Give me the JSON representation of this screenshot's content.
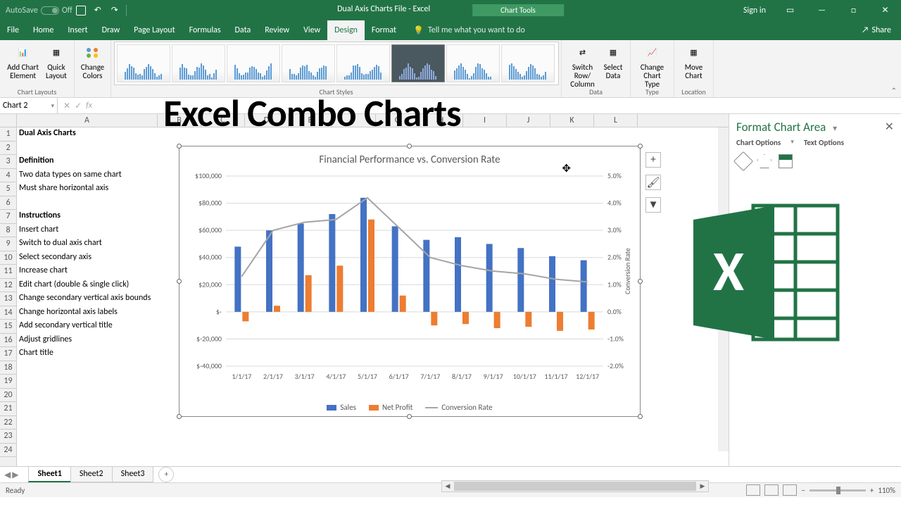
{
  "title_bar": {
    "autosave_label": "AutoSave",
    "autosave_state": "Off",
    "file_title": "Dual Axis Charts File  -  Excel",
    "chart_tools": "Chart Tools",
    "sign_in": "Sign in"
  },
  "menu": {
    "items": [
      "File",
      "Home",
      "Insert",
      "Draw",
      "Page Layout",
      "Formulas",
      "Data",
      "Review",
      "View",
      "Design",
      "Format"
    ],
    "active": "Design",
    "tell_me": "Tell me what you want to do",
    "share": "Share"
  },
  "ribbon": {
    "groups": {
      "chart_layouts": {
        "label": "Chart Layouts",
        "add_element": "Add Chart\nElement",
        "quick_layout": "Quick\nLayout"
      },
      "colors": {
        "change_colors": "Change\nColors"
      },
      "chart_styles": {
        "label": "Chart Styles"
      },
      "data": {
        "label": "Data",
        "switch": "Switch Row/\nColumn",
        "select": "Select\nData"
      },
      "type": {
        "label": "Type",
        "change_type": "Change\nChart Type"
      },
      "location": {
        "label": "Location",
        "move": "Move\nChart"
      }
    }
  },
  "formula_bar": {
    "name_box": "Chart 2"
  },
  "overlay_title": "Excel Combo Charts",
  "columns": {
    "A": 200,
    "B": 62,
    "C": 62,
    "D": 62,
    "E": 62,
    "F": 62,
    "G": 62,
    "H": 62,
    "I": 62,
    "J": 62,
    "K": 62,
    "L": 62
  },
  "spreadsheet_data": [
    {
      "row": 1,
      "col": "A",
      "text": "Dual Axis Charts",
      "bold": true
    },
    {
      "row": 3,
      "col": "A",
      "text": "Definition",
      "bold": true
    },
    {
      "row": 4,
      "col": "A",
      "text": "Two data types on same chart"
    },
    {
      "row": 5,
      "col": "A",
      "text": "Must share horizontal axis"
    },
    {
      "row": 7,
      "col": "A",
      "text": "Instructions",
      "bold": true
    },
    {
      "row": 8,
      "col": "A",
      "text": "Insert chart"
    },
    {
      "row": 9,
      "col": "A",
      "text": "Switch to dual axis chart"
    },
    {
      "row": 10,
      "col": "A",
      "text": "Select secondary axis"
    },
    {
      "row": 11,
      "col": "A",
      "text": "Increase chart"
    },
    {
      "row": 12,
      "col": "A",
      "text": "Edit chart (double & single click)"
    },
    {
      "row": 13,
      "col": "A",
      "text": "Change secondary vertical axis bounds"
    },
    {
      "row": 14,
      "col": "A",
      "text": "Change horizontal axis labels"
    },
    {
      "row": 15,
      "col": "A",
      "text": "Add secondary vertical title"
    },
    {
      "row": 16,
      "col": "A",
      "text": "Adjust gridlines"
    },
    {
      "row": 17,
      "col": "A",
      "text": "Chart title"
    }
  ],
  "row_count": 24,
  "chart": {
    "title": "Financial Performance vs. Conversion Rate",
    "categories": [
      "1/1/17",
      "2/1/17",
      "3/1/17",
      "4/1/17",
      "5/1/17",
      "6/1/17",
      "7/1/17",
      "8/1/17",
      "9/1/17",
      "10/1/17",
      "11/1/17",
      "12/1/17"
    ],
    "sales": [
      48000,
      60000,
      65000,
      72000,
      84000,
      63000,
      53000,
      55000,
      50000,
      47000,
      41000,
      38000
    ],
    "net_profit": [
      -7000,
      4500,
      27000,
      34000,
      68000,
      12000,
      -10000,
      -9000,
      -12000,
      -11000,
      -14000,
      -13000
    ],
    "conversion": [
      1.3,
      3.0,
      3.3,
      3.4,
      4.2,
      3.1,
      2.0,
      1.7,
      1.5,
      1.4,
      1.2,
      1.1
    ],
    "y_left": {
      "min": -40000,
      "max": 100000,
      "step": 20000,
      "labels": [
        "$100,000",
        "$80,000",
        "$60,000",
        "$40,000",
        "$20,000",
        "$-",
        "$-20,000",
        "$-40,000"
      ]
    },
    "y_right": {
      "min": -2.0,
      "max": 5.0,
      "step": 1.0,
      "labels": [
        "5.0%",
        "4.0%",
        "3.0%",
        "2.0%",
        "1.0%",
        "0.0%",
        "-1.0%",
        "-2.0%"
      ]
    },
    "y2_title": "Conversion Rate",
    "colors": {
      "sales": "#4472c4",
      "net_profit": "#ed7d31",
      "conversion": "#a5a5a5",
      "grid": "#d9d9d9",
      "text": "#595959"
    },
    "legend": [
      {
        "label": "Sales",
        "color": "#4472c4",
        "type": "bar"
      },
      {
        "label": "Net Profit",
        "color": "#ed7d31",
        "type": "bar"
      },
      {
        "label": "Conversion Rate",
        "color": "#a5a5a5",
        "type": "line"
      }
    ]
  },
  "format_pane": {
    "title": "Format Chart Area",
    "opt1": "Chart Options",
    "opt2": "Text Options"
  },
  "sheet_tabs": {
    "tabs": [
      "Sheet1",
      "Sheet2",
      "Sheet3"
    ],
    "active": "Sheet1"
  },
  "status": {
    "ready": "Ready",
    "zoom": "110%"
  }
}
